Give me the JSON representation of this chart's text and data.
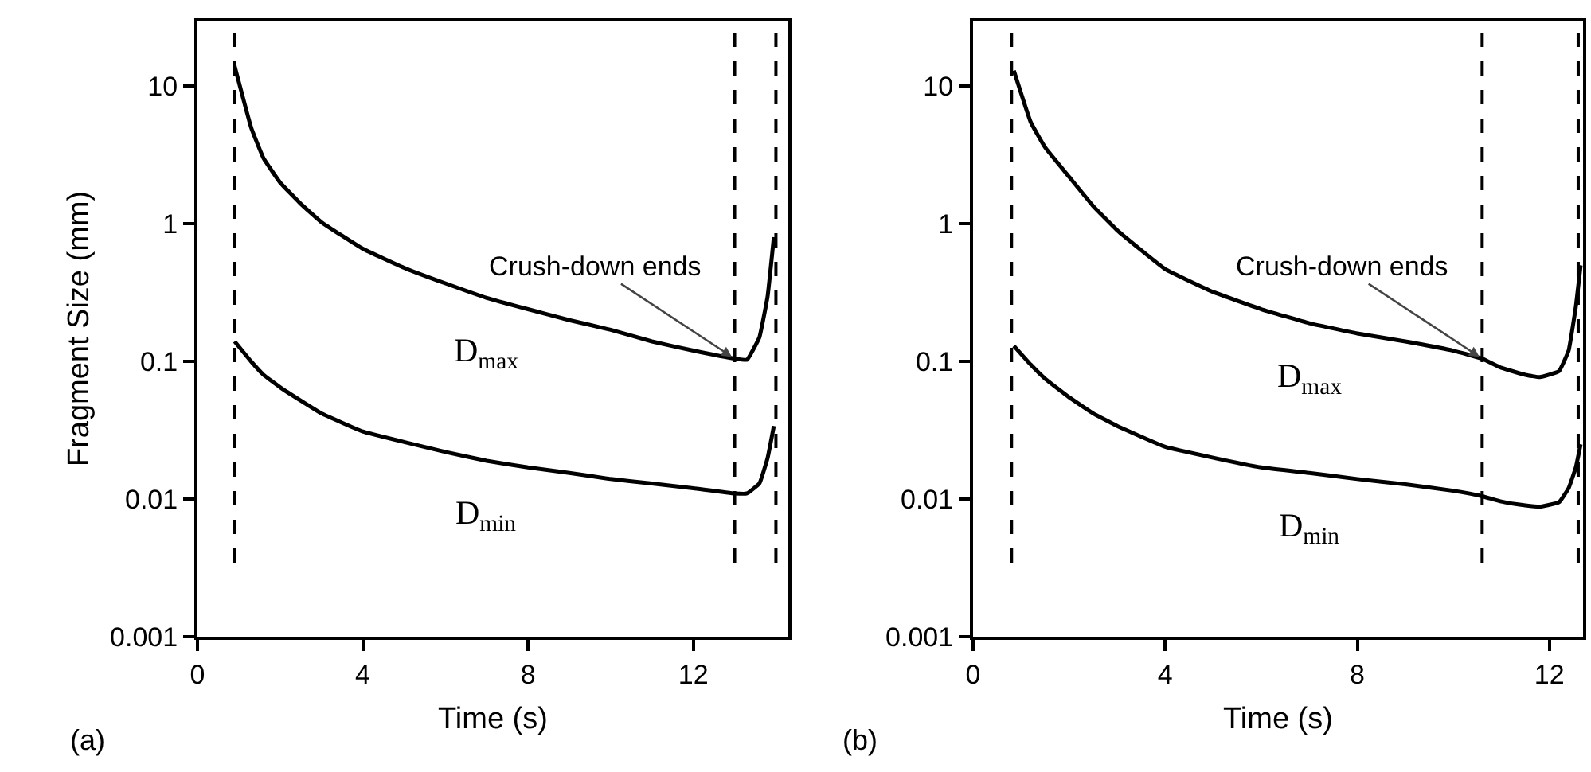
{
  "chart_data": [
    {
      "type": "line",
      "xlabel": "Time (s)",
      "ylabel": "Fragment Size (mm)",
      "log": "y",
      "grid": false,
      "legend": false,
      "line_style": "solid",
      "marker": "none",
      "xlim": [
        0,
        14.3
      ],
      "xticks": [
        0,
        4,
        8,
        12
      ],
      "ylim": [
        0.001,
        30
      ],
      "yticks": [
        0.001,
        0.01,
        0.1,
        1,
        10
      ],
      "series": [
        {
          "name": "D$_{max}$",
          "color": "#000000",
          "x": [
            0.9,
            1.3,
            1.6,
            2,
            2.5,
            3,
            4,
            5,
            6,
            7,
            8,
            9,
            10,
            11,
            12,
            13,
            13.3,
            13.6,
            13.8,
            13.95
          ],
          "values": [
            14,
            5,
            3,
            2,
            1.4,
            1.03,
            0.66,
            0.48,
            0.37,
            0.29,
            0.24,
            0.2,
            0.17,
            0.14,
            0.12,
            0.105,
            0.103,
            0.15,
            0.3,
            0.8
          ]
        },
        {
          "name": "D$_{min}$",
          "color": "#000000",
          "x": [
            0.9,
            1.3,
            1.6,
            2,
            2.5,
            3,
            4,
            5,
            6,
            7,
            8,
            9,
            10,
            11,
            12,
            13,
            13.3,
            13.6,
            13.8,
            13.95
          ],
          "values": [
            0.14,
            0.1,
            0.08,
            0.065,
            0.052,
            0.042,
            0.031,
            0.026,
            0.022,
            0.019,
            0.017,
            0.0155,
            0.014,
            0.013,
            0.012,
            0.011,
            0.011,
            0.013,
            0.02,
            0.034
          ]
        }
      ],
      "ref_lines": [
        {
          "axis": "x",
          "value": 0.9,
          "color": "#000000",
          "line_style": "dashed"
        },
        {
          "axis": "x",
          "value": 13,
          "color": "#000000",
          "line_style": "dashed"
        },
        {
          "axis": "x",
          "value": 14,
          "color": "#000000",
          "line_style": "dashed"
        }
      ],
      "annotations": [
        {
          "text": "Crush-down ends",
          "x": 13,
          "y": 0.105
        },
        "(a)"
      ]
    },
    {
      "type": "line",
      "xlabel": "Time (s)",
      "log": "y",
      "grid": false,
      "legend": false,
      "line_style": "solid",
      "marker": "none",
      "xlim": [
        0,
        12.7
      ],
      "xticks": [
        0,
        4,
        8,
        12
      ],
      "ylim": [
        0.001,
        30
      ],
      "yticks": [
        0.001,
        0.01,
        0.1,
        1,
        10
      ],
      "series": [
        {
          "name": "D$_{max}$",
          "color": "#000000",
          "x": [
            0.85,
            1.2,
            1.5,
            2,
            2.5,
            3,
            4,
            5,
            6,
            7,
            8,
            9,
            10,
            10.6,
            11,
            11.5,
            11.8,
            12.2,
            12.4,
            12.55,
            12.65
          ],
          "values": [
            13,
            5.5,
            3.6,
            2.2,
            1.35,
            0.9,
            0.47,
            0.32,
            0.24,
            0.19,
            0.16,
            0.14,
            0.12,
            0.105,
            0.09,
            0.08,
            0.077,
            0.085,
            0.12,
            0.25,
            0.5
          ]
        },
        {
          "name": "D$_{min}$",
          "color": "#000000",
          "x": [
            0.85,
            1.2,
            1.5,
            2,
            2.5,
            3,
            4,
            5,
            6,
            7,
            8,
            9,
            10,
            10.6,
            11,
            11.5,
            11.8,
            12.2,
            12.4,
            12.55,
            12.65
          ],
          "values": [
            0.13,
            0.095,
            0.075,
            0.055,
            0.042,
            0.034,
            0.024,
            0.02,
            0.017,
            0.0155,
            0.014,
            0.0128,
            0.0115,
            0.0105,
            0.0096,
            0.009,
            0.0088,
            0.0095,
            0.012,
            0.017,
            0.025
          ]
        }
      ],
      "ref_lines": [
        {
          "axis": "x",
          "value": 0.8,
          "color": "#000000",
          "line_style": "dashed"
        },
        {
          "axis": "x",
          "value": 10.6,
          "color": "#000000",
          "line_style": "dashed"
        },
        {
          "axis": "x",
          "value": 12.6,
          "color": "#000000",
          "line_style": "dashed"
        }
      ],
      "annotations": [
        {
          "text": "Crush-down ends",
          "x": 10.6,
          "y": 0.105
        },
        "(b)"
      ]
    }
  ]
}
